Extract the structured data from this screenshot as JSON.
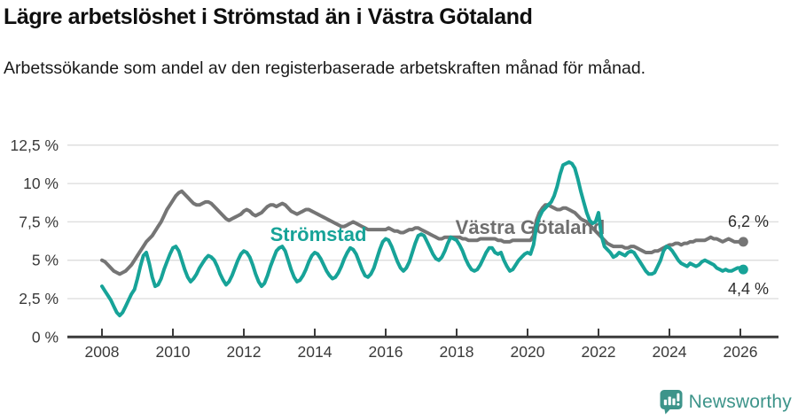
{
  "header": {
    "title": "Lägre arbetslöshet i Strömstad än i Västra Götaland",
    "subtitle": "Arbetssökande som andel av den registerbaserade arbetskraften månad för månad."
  },
  "chart_data": {
    "type": "line",
    "frequency": "monthly",
    "x_start": "2008-01",
    "x_end": "2026-02",
    "x_tick_years": [
      2008,
      2010,
      2012,
      2014,
      2016,
      2018,
      2020,
      2022,
      2024,
      2026
    ],
    "x_tick_labels": [
      "2008",
      "2010",
      "2012",
      "2014",
      "2016",
      "2018",
      "2020",
      "2022",
      "2024",
      "2026"
    ],
    "y_tick_values": [
      0,
      2.5,
      5,
      7.5,
      10,
      12.5
    ],
    "y_tick_labels": [
      "0 %",
      "2,5 %",
      "5 %",
      "7,5 %",
      "10 %",
      "12,5 %"
    ],
    "ylim": [
      0,
      13.2
    ],
    "grid": "horizontal",
    "colors": {
      "grid": "#dcdcdc",
      "axis": "#3b3b3b"
    },
    "series": [
      {
        "name": "Västra Götaland",
        "color": "#757575",
        "end_label": "6,2 %",
        "last_value": 6.2,
        "values": [
          5.0,
          4.9,
          4.7,
          4.5,
          4.3,
          4.2,
          4.1,
          4.2,
          4.3,
          4.5,
          4.7,
          5.0,
          5.3,
          5.6,
          5.9,
          6.2,
          6.4,
          6.6,
          6.9,
          7.2,
          7.5,
          7.9,
          8.3,
          8.6,
          8.9,
          9.2,
          9.4,
          9.5,
          9.3,
          9.1,
          8.9,
          8.7,
          8.6,
          8.6,
          8.7,
          8.8,
          8.8,
          8.7,
          8.5,
          8.3,
          8.1,
          7.9,
          7.7,
          7.6,
          7.7,
          7.8,
          7.9,
          8.0,
          8.2,
          8.3,
          8.2,
          8.0,
          7.9,
          8.0,
          8.1,
          8.3,
          8.5,
          8.6,
          8.6,
          8.5,
          8.6,
          8.7,
          8.6,
          8.4,
          8.2,
          8.1,
          8.0,
          8.1,
          8.2,
          8.3,
          8.3,
          8.2,
          8.1,
          8.0,
          7.9,
          7.8,
          7.7,
          7.6,
          7.5,
          7.4,
          7.3,
          7.2,
          7.2,
          7.3,
          7.4,
          7.5,
          7.4,
          7.3,
          7.2,
          7.1,
          7.0,
          7.0,
          7.0,
          7.0,
          7.0,
          7.0,
          7.0,
          7.1,
          7.0,
          6.9,
          6.9,
          6.8,
          6.8,
          6.9,
          7.0,
          7.0,
          7.1,
          7.1,
          7.0,
          6.9,
          6.8,
          6.7,
          6.6,
          6.5,
          6.4,
          6.4,
          6.5,
          6.5,
          6.5,
          6.5,
          6.5,
          6.5,
          6.4,
          6.4,
          6.3,
          6.3,
          6.3,
          6.3,
          6.4,
          6.4,
          6.4,
          6.4,
          6.4,
          6.4,
          6.3,
          6.3,
          6.2,
          6.2,
          6.2,
          6.3,
          6.3,
          6.3,
          6.3,
          6.3,
          6.3,
          6.3,
          6.6,
          7.6,
          8.1,
          8.4,
          8.6,
          8.6,
          8.5,
          8.4,
          8.3,
          8.3,
          8.4,
          8.4,
          8.3,
          8.2,
          8.1,
          7.9,
          7.7,
          7.6,
          7.5,
          7.3,
          7.1,
          6.9,
          6.7,
          6.5,
          6.3,
          6.1,
          6.0,
          5.9,
          5.9,
          5.9,
          5.9,
          5.8,
          5.8,
          5.9,
          5.9,
          5.8,
          5.7,
          5.6,
          5.5,
          5.5,
          5.5,
          5.6,
          5.6,
          5.7,
          5.8,
          5.9,
          6.0,
          6.0,
          6.1,
          6.1,
          6.0,
          6.1,
          6.1,
          6.2,
          6.2,
          6.3,
          6.3,
          6.3,
          6.3,
          6.4,
          6.5,
          6.4,
          6.4,
          6.3,
          6.2,
          6.3,
          6.4,
          6.3,
          6.2,
          6.2,
          6.2,
          6.2
        ]
      },
      {
        "name": "Strömstad",
        "color": "#17a398",
        "end_label": "4,4 %",
        "last_value": 4.4,
        "values": [
          3.3,
          3.0,
          2.7,
          2.4,
          2.0,
          1.6,
          1.4,
          1.6,
          2.0,
          2.4,
          2.8,
          3.1,
          3.8,
          4.6,
          5.3,
          5.5,
          4.8,
          3.9,
          3.3,
          3.4,
          3.8,
          4.4,
          4.9,
          5.4,
          5.8,
          5.9,
          5.6,
          5.0,
          4.4,
          3.9,
          3.6,
          3.8,
          4.1,
          4.5,
          4.8,
          5.1,
          5.3,
          5.2,
          5.0,
          4.6,
          4.1,
          3.7,
          3.4,
          3.6,
          4.0,
          4.5,
          5.0,
          5.4,
          5.6,
          5.5,
          5.2,
          4.7,
          4.1,
          3.6,
          3.3,
          3.5,
          4.0,
          4.6,
          5.1,
          5.6,
          5.8,
          5.9,
          5.6,
          5.0,
          4.4,
          3.9,
          3.6,
          3.7,
          4.0,
          4.4,
          4.9,
          5.3,
          5.5,
          5.4,
          5.1,
          4.7,
          4.3,
          4.0,
          3.8,
          3.9,
          4.2,
          4.6,
          5.1,
          5.5,
          5.8,
          5.7,
          5.4,
          4.9,
          4.4,
          4.0,
          3.9,
          4.1,
          4.5,
          5.1,
          5.7,
          6.2,
          6.4,
          6.3,
          5.9,
          5.4,
          4.9,
          4.5,
          4.3,
          4.5,
          4.9,
          5.5,
          6.1,
          6.6,
          6.7,
          6.6,
          6.2,
          5.8,
          5.4,
          5.1,
          5.0,
          5.2,
          5.6,
          6.1,
          6.5,
          6.4,
          6.3,
          6.0,
          5.6,
          5.1,
          4.7,
          4.4,
          4.3,
          4.4,
          4.7,
          5.1,
          5.5,
          5.8,
          5.8,
          5.5,
          5.4,
          5.5,
          5.0,
          4.6,
          4.3,
          4.4,
          4.7,
          5.0,
          5.2,
          5.4,
          5.5,
          5.4,
          6.0,
          7.2,
          7.8,
          8.2,
          8.4,
          8.6,
          8.8,
          9.2,
          9.8,
          10.6,
          11.2,
          11.3,
          11.4,
          11.3,
          11.0,
          10.3,
          9.5,
          8.8,
          8.1,
          7.6,
          7.4,
          7.5,
          8.1,
          6.6,
          5.9,
          5.7,
          5.5,
          5.2,
          5.3,
          5.5,
          5.4,
          5.3,
          5.5,
          5.6,
          5.5,
          5.2,
          4.9,
          4.6,
          4.3,
          4.1,
          4.1,
          4.2,
          4.6,
          5.0,
          5.6,
          5.9,
          5.8,
          5.6,
          5.3,
          5.0,
          4.8,
          4.7,
          4.6,
          4.8,
          4.7,
          4.6,
          4.7,
          4.9,
          5.0,
          4.9,
          4.8,
          4.7,
          4.5,
          4.4,
          4.3,
          4.4,
          4.3,
          4.3,
          4.4,
          4.5,
          4.5,
          4.4
        ]
      }
    ]
  },
  "footer": {
    "brand": "Newsworthy",
    "brand_color": "#3d948a"
  }
}
